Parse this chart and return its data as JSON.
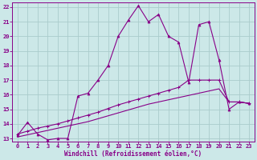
{
  "background_color": "#cce8e8",
  "grid_color": "#aacccc",
  "line_color": "#880088",
  "xlabel": "Windchill (Refroidissement éolien,°C)",
  "xlim": [
    -0.5,
    23.5
  ],
  "ylim": [
    12.8,
    22.3
  ],
  "yticks": [
    13,
    14,
    15,
    16,
    17,
    18,
    19,
    20,
    21,
    22
  ],
  "xticks": [
    0,
    1,
    2,
    3,
    4,
    5,
    6,
    7,
    8,
    9,
    10,
    11,
    12,
    13,
    14,
    15,
    16,
    17,
    18,
    19,
    20,
    21,
    22,
    23
  ],
  "line1_x": [
    0,
    1,
    2,
    3,
    4,
    5,
    6,
    7,
    8,
    9,
    10,
    11,
    12,
    13,
    14,
    15,
    16,
    17,
    18,
    19,
    20,
    21,
    22,
    23
  ],
  "line1_y": [
    13.2,
    14.1,
    13.3,
    12.9,
    13.0,
    13.0,
    15.9,
    16.1,
    17.0,
    18.0,
    20.0,
    21.1,
    22.1,
    21.0,
    21.5,
    20.0,
    19.6,
    16.85,
    20.8,
    21.0,
    18.4,
    15.0,
    15.5,
    15.4
  ],
  "line2_x": [
    0,
    1,
    2,
    3,
    4,
    5,
    6,
    7,
    8,
    9,
    10,
    11,
    12,
    13,
    14,
    15,
    16,
    17,
    18,
    19,
    20,
    21,
    22,
    23
  ],
  "line2_y": [
    13.3,
    13.5,
    13.7,
    13.85,
    14.0,
    14.2,
    14.4,
    14.6,
    14.8,
    15.05,
    15.3,
    15.5,
    15.7,
    15.9,
    16.1,
    16.3,
    16.5,
    17.0,
    17.0,
    17.0,
    17.0,
    15.5,
    15.5,
    15.4
  ],
  "line3_x": [
    0,
    1,
    2,
    3,
    4,
    5,
    6,
    7,
    8,
    9,
    10,
    11,
    12,
    13,
    14,
    15,
    16,
    17,
    18,
    19,
    20,
    21,
    22,
    23
  ],
  "line3_y": [
    13.1,
    13.25,
    13.4,
    13.55,
    13.7,
    13.85,
    14.0,
    14.15,
    14.35,
    14.55,
    14.75,
    14.95,
    15.15,
    15.35,
    15.5,
    15.65,
    15.8,
    15.95,
    16.1,
    16.25,
    16.4,
    15.5,
    15.5,
    15.4
  ]
}
